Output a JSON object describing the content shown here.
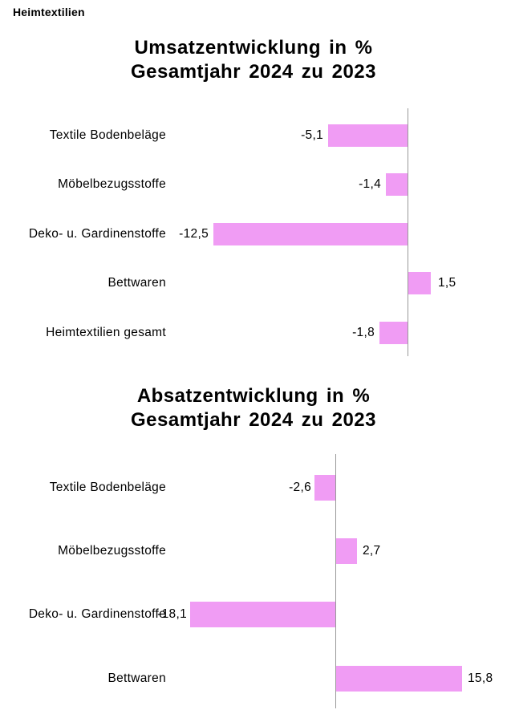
{
  "page": {
    "header": "Heimtextilien"
  },
  "colors": {
    "bar": "#F09CF4",
    "axis": "#999999",
    "text": "#000000",
    "background": "#FFFFFF"
  },
  "chart_data": [
    {
      "type": "bar",
      "orientation": "horizontal",
      "title": "Umsatzentwicklung in %",
      "subtitle": "Gesamtjahr 2024 zu 2023",
      "categories": [
        "Textile Bodenbeläge",
        "Möbelbezugsstoffe",
        "Deko- u. Gardinenstoffe",
        "Bettwaren",
        "Heimtextilien gesamt"
      ],
      "values": [
        -5.1,
        -1.4,
        -12.5,
        1.5,
        -1.8
      ],
      "value_labels": [
        "-5,1",
        "-1,4",
        "-12,5",
        "1,5",
        "-1,8"
      ],
      "xlim": [
        -16,
        6
      ],
      "grid": false,
      "legend": false,
      "value_label_position": "outside-end"
    },
    {
      "type": "bar",
      "orientation": "horizontal",
      "title": "Absatzentwicklung in %",
      "subtitle": "Gesamtjahr 2024 zu 2023",
      "categories": [
        "Textile Bodenbeläge",
        "Möbelbezugsstoffe",
        "Deko- u. Gardinenstoffe",
        "Bettwaren"
      ],
      "values": [
        -2.6,
        2.7,
        -18.1,
        15.8
      ],
      "value_labels": [
        "-2,6",
        "2,7",
        "-18,1",
        "15,8"
      ],
      "xlim": [
        -21,
        21
      ],
      "grid": false,
      "legend": false,
      "value_label_position": "outside-end"
    }
  ]
}
